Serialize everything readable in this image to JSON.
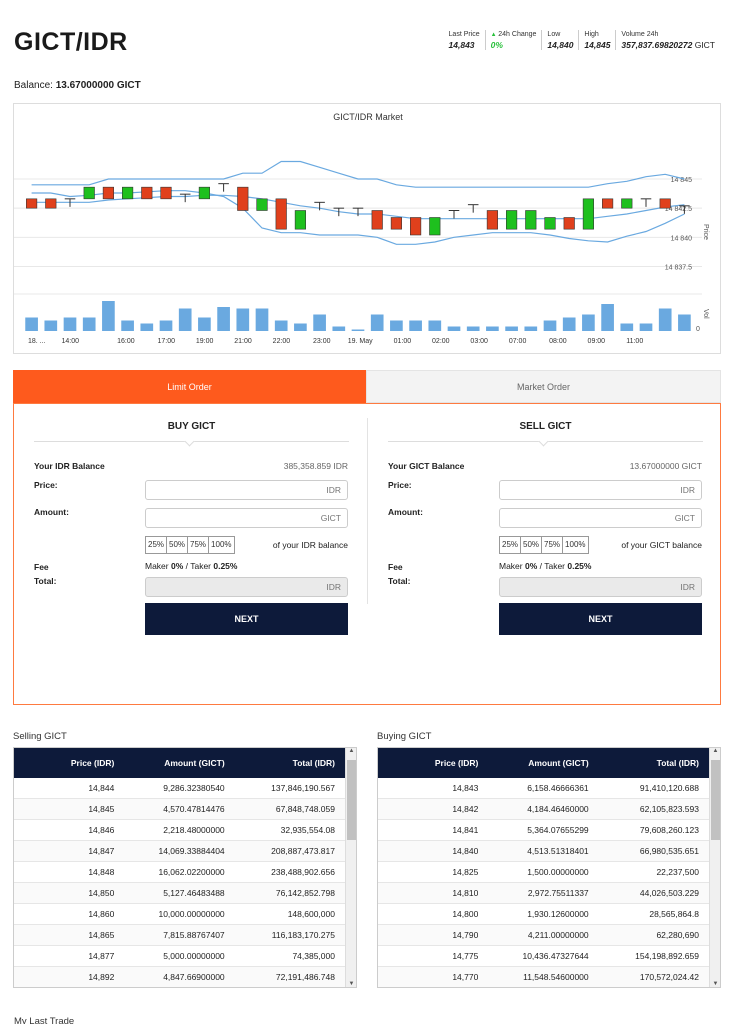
{
  "pair": "GICT/IDR",
  "stats": [
    {
      "label": "Last Price",
      "value": "14,843",
      "unit": ""
    },
    {
      "label": "24h Change",
      "value": "0%",
      "unit": "",
      "green": true
    },
    {
      "label": "Low",
      "value": "14,840",
      "unit": ""
    },
    {
      "label": "High",
      "value": "14,845",
      "unit": ""
    },
    {
      "label": "Volume 24h",
      "value": "357,837.69820272",
      "unit": " GICT"
    }
  ],
  "balance": {
    "label": "Balance:",
    "value": "13.67000000 GICT"
  },
  "chart": {
    "title": "GICT/IDR Market",
    "price_axis_label": "Price",
    "vol_axis_label": "Vol",
    "y_ticks": [
      "14 845",
      "14 842.5",
      "14 840",
      "14 837.5"
    ],
    "x_ticks": [
      "18. ...",
      "14:00",
      "16:00",
      "17:00",
      "19:00",
      "21:00",
      "22:00",
      "23:00",
      "19. May",
      "01:00",
      "02:00",
      "03:00",
      "07:00",
      "08:00",
      "09:00",
      "11:00"
    ],
    "vol_tick": "0"
  },
  "chart_data": {
    "type": "candlestick",
    "title": "GICT/IDR Market",
    "ylabel": "Price",
    "ylim": [
      14836,
      14848
    ],
    "colors": {
      "up": "#1ec01e",
      "down": "#e0401c",
      "band": "#6aa9e0",
      "volume": "#6aa9e0"
    },
    "candles": [
      {
        "o": 14843.3,
        "c": 14842.5,
        "v": 0.45
      },
      {
        "o": 14843.3,
        "c": 14842.5,
        "v": 0.35
      },
      {
        "o": 14843.3,
        "c": 14843.3,
        "v": 0.45
      },
      {
        "o": 14843.3,
        "c": 14844.3,
        "v": 0.45
      },
      {
        "o": 14844.3,
        "c": 14843.3,
        "v": 1.0
      },
      {
        "o": 14843.3,
        "c": 14844.3,
        "v": 0.35
      },
      {
        "o": 14844.3,
        "c": 14843.3,
        "v": 0.25
      },
      {
        "o": 14844.3,
        "c": 14843.3,
        "v": 0.35
      },
      {
        "o": 14843.7,
        "c": 14843.7,
        "v": 0.75
      },
      {
        "o": 14843.3,
        "c": 14844.3,
        "v": 0.45
      },
      {
        "o": 14844.6,
        "c": 14844.6,
        "v": 0.8
      },
      {
        "o": 14844.3,
        "c": 14842.3,
        "v": 0.75
      },
      {
        "o": 14842.3,
        "c": 14843.3,
        "v": 0.75
      },
      {
        "o": 14843.3,
        "c": 14840.7,
        "v": 0.35
      },
      {
        "o": 14840.7,
        "c": 14842.3,
        "v": 0.25
      },
      {
        "o": 14843.0,
        "c": 14843.0,
        "v": 0.55
      },
      {
        "o": 14842.5,
        "c": 14842.5,
        "v": 0.15
      },
      {
        "o": 14842.5,
        "c": 14842.5,
        "v": 0.05
      },
      {
        "o": 14842.3,
        "c": 14840.7,
        "v": 0.55
      },
      {
        "o": 14841.7,
        "c": 14840.7,
        "v": 0.35
      },
      {
        "o": 14841.7,
        "c": 14840.2,
        "v": 0.35
      },
      {
        "o": 14840.2,
        "c": 14841.7,
        "v": 0.35
      },
      {
        "o": 14842.3,
        "c": 14842.3,
        "v": 0.15
      },
      {
        "o": 14842.8,
        "c": 14842.8,
        "v": 0.15
      },
      {
        "o": 14842.3,
        "c": 14840.7,
        "v": 0.15
      },
      {
        "o": 14840.7,
        "c": 14842.3,
        "v": 0.15
      },
      {
        "o": 14840.7,
        "c": 14842.3,
        "v": 0.15
      },
      {
        "o": 14840.7,
        "c": 14841.7,
        "v": 0.35
      },
      {
        "o": 14841.7,
        "c": 14840.7,
        "v": 0.45
      },
      {
        "o": 14840.7,
        "c": 14843.3,
        "v": 0.55
      },
      {
        "o": 14843.3,
        "c": 14842.5,
        "v": 0.9
      },
      {
        "o": 14842.5,
        "c": 14843.3,
        "v": 0.25
      },
      {
        "o": 14843.3,
        "c": 14843.3,
        "v": 0.25
      },
      {
        "o": 14843.3,
        "c": 14842.5,
        "v": 0.75
      },
      {
        "o": 14842.7,
        "c": 14842.7,
        "v": 0.55
      }
    ],
    "upper_band": [
      14844.5,
      14844.5,
      14844.5,
      14844.5,
      14845,
      14845,
      14845,
      14845,
      14845,
      14845,
      14845,
      14845.5,
      14845.5,
      14846.5,
      14846.5,
      14846,
      14845.5,
      14845,
      14845,
      14844.5,
      14844.3,
      14844.3,
      14844.3,
      14844.3,
      14844.3,
      14844.3,
      14844.3,
      14844.3,
      14844.3,
      14844.3,
      14844.6,
      14844.8,
      14845.2,
      14845.4,
      14845
    ],
    "mid_band": [
      14843,
      14843,
      14843,
      14843,
      14843.2,
      14843.3,
      14843.4,
      14843.5,
      14843.5,
      14843.6,
      14843.6,
      14843.5,
      14843.3,
      14843,
      14842.7,
      14842.5,
      14842.2,
      14842,
      14842,
      14841.8,
      14841.6,
      14841.6,
      14841.6,
      14841.6,
      14841.6,
      14841.6,
      14841.6,
      14841.6,
      14841.6,
      14841.6,
      14841.8,
      14842,
      14842.3,
      14842.6,
      14842.8
    ],
    "lower_band": [
      14843.8,
      14843.8,
      14843.5,
      14843.6,
      14843.8,
      14843.8,
      14843.9,
      14844,
      14844,
      14843.8,
      14843.5,
      14842.5,
      14840.8,
      14840.4,
      14840.4,
      14840.2,
      14840.2,
      14840.2,
      14840,
      14839.4,
      14839.4,
      14839.6,
      14840,
      14840.2,
      14840.4,
      14840.4,
      14840.4,
      14840.2,
      14839.9,
      14839.7,
      14839.6,
      14840.1,
      14840.5,
      14841.2,
      14842
    ]
  },
  "tabs": {
    "limit": "Limit Order",
    "market": "Market Order"
  },
  "buy": {
    "title": "BUY GICT",
    "balance_label": "Your IDR Balance",
    "balance_value": "385,358.859 IDR",
    "price_label": "Price:",
    "price_placeholder": "IDR",
    "amount_label": "Amount:",
    "amount_placeholder": "GICT",
    "pcts": [
      "25%",
      "50%",
      "75%",
      "100%"
    ],
    "pct_note": "of your IDR balance",
    "fee_label": "Fee",
    "fee_maker": "Maker ",
    "fee_maker_val": "0%",
    "fee_sep": " / Taker ",
    "fee_taker_val": "0.25%",
    "total_label": "Total:",
    "total_placeholder": "IDR",
    "next": "NEXT"
  },
  "sell": {
    "title": "SELL GICT",
    "balance_label": "Your GICT Balance",
    "balance_value": "13.67000000 GICT",
    "price_label": "Price:",
    "price_placeholder": "IDR",
    "amount_label": "Amount:",
    "amount_placeholder": "GICT",
    "pcts": [
      "25%",
      "50%",
      "75%",
      "100%"
    ],
    "pct_note": "of your GICT balance",
    "fee_label": "Fee",
    "fee_maker": "Maker ",
    "fee_maker_val": "0%",
    "fee_sep": " / Taker ",
    "fee_taker_val": "0.25%",
    "total_label": "Total:",
    "total_placeholder": "IDR",
    "next": "NEXT"
  },
  "selling": {
    "title": "Selling GICT",
    "headers": [
      "Price (IDR)",
      "Amount (GICT)",
      "Total (IDR)"
    ],
    "rows": [
      [
        "14,844",
        "9,286.32380540",
        "137,846,190.567"
      ],
      [
        "14,845",
        "4,570.47814476",
        "67,848,748.059"
      ],
      [
        "14,846",
        "2,218.48000000",
        "32,935,554.08"
      ],
      [
        "14,847",
        "14,069.33884404",
        "208,887,473.817"
      ],
      [
        "14,848",
        "16,062.02200000",
        "238,488,902.656"
      ],
      [
        "14,850",
        "5,127.46483488",
        "76,142,852.798"
      ],
      [
        "14,860",
        "10,000.00000000",
        "148,600,000"
      ],
      [
        "14,865",
        "7,815.88767407",
        "116,183,170.275"
      ],
      [
        "14,877",
        "5,000.00000000",
        "74,385,000"
      ],
      [
        "14,892",
        "4,847.66900000",
        "72,191,486.748"
      ]
    ]
  },
  "buying": {
    "title": "Buying GICT",
    "headers": [
      "Price (IDR)",
      "Amount (GICT)",
      "Total (IDR)"
    ],
    "rows": [
      [
        "14,843",
        "6,158.46666361",
        "91,410,120.688"
      ],
      [
        "14,842",
        "4,184.46460000",
        "62,105,823.593"
      ],
      [
        "14,841",
        "5,364.07655299",
        "79,608,260.123"
      ],
      [
        "14,840",
        "4,513.51318401",
        "66,980,535.651"
      ],
      [
        "14,825",
        "1,500.00000000",
        "22,237,500"
      ],
      [
        "14,810",
        "2,972.75511337",
        "44,026,503.229"
      ],
      [
        "14,800",
        "1,930.12600000",
        "28,565,864.8"
      ],
      [
        "14,790",
        "4,211.00000000",
        "62,280,690"
      ],
      [
        "14,775",
        "10,436.47327644",
        "154,198,892.659"
      ],
      [
        "14,770",
        "11,548.54600000",
        "170,572,024.42"
      ]
    ]
  },
  "last_trade_title": "My Last Trade"
}
